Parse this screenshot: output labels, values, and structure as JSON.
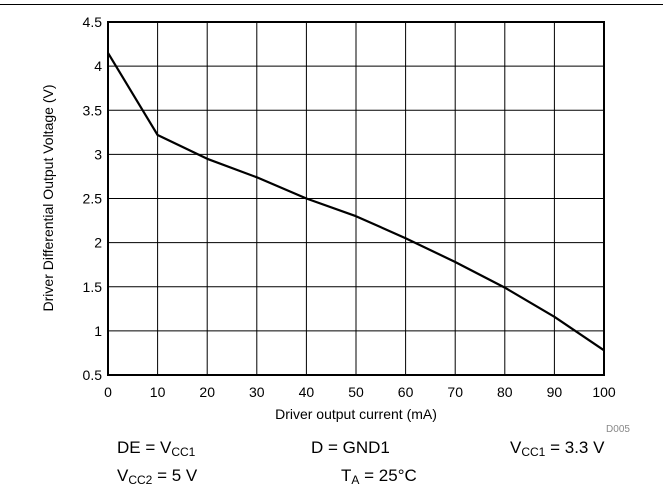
{
  "chart_data": {
    "type": "line",
    "title": "",
    "xlabel": "Driver output current (mA)",
    "ylabel": "Driver Differential Output Voltage (V)",
    "xlim": [
      0,
      100
    ],
    "ylim": [
      0.5,
      4.5
    ],
    "x_ticks": [
      "0",
      "10",
      "20",
      "30",
      "40",
      "50",
      "60",
      "70",
      "80",
      "90",
      "100"
    ],
    "y_ticks": [
      "0.5",
      "1",
      "1.5",
      "2",
      "2.5",
      "3",
      "3.5",
      "4",
      "4.5"
    ],
    "grid": true,
    "legend": "none",
    "series": [
      {
        "x": [
          0,
          10,
          20,
          30,
          40,
          50,
          60,
          70,
          80,
          90,
          100
        ],
        "y": [
          4.15,
          3.22,
          2.95,
          2.74,
          2.5,
          2.3,
          2.05,
          1.78,
          1.49,
          1.16,
          0.78
        ]
      }
    ],
    "code": "D005"
  },
  "conditions": {
    "de_prefix": "DE = V",
    "de_sub": "CC1",
    "d": "D = GND1",
    "vcc1_prefix": "V",
    "vcc1_sub": "CC1",
    "vcc1_suffix": " = 3.3 V",
    "vcc2_prefix": "V",
    "vcc2_sub": "CC2",
    "vcc2_suffix": " = 5 V",
    "ta_prefix": "T",
    "ta_sub": "A",
    "ta_suffix": " = 25°C"
  }
}
